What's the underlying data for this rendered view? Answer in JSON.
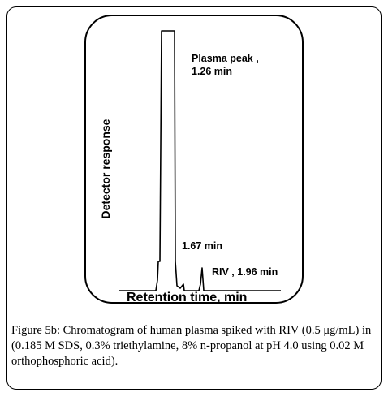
{
  "chart_data": {
    "type": "line",
    "title": "",
    "xlabel": "Retention time, min",
    "ylabel": "Detector response",
    "grid": false,
    "legend": "none",
    "annotations": [
      {
        "id": "plasma",
        "lines": [
          "Plasma peak ,",
          "1.26 min"
        ]
      },
      {
        "id": "p167",
        "lines": [
          "1.67 min"
        ]
      },
      {
        "id": "riv",
        "lines": [
          "RIV , 1.96 min"
        ]
      }
    ],
    "peaks": [
      {
        "label": "Plasma peak",
        "retention_time_min": 1.26
      },
      {
        "label": "unlabeled",
        "retention_time_min": 1.67
      },
      {
        "label": "RIV",
        "retention_time_min": 1.96
      }
    ],
    "color": "#000000"
  },
  "caption": {
    "label": "Figure 5b:",
    "text": " Chromatogram of human plasma spiked with RIV (0.5 μg/mL) in (0.185 M SDS, 0.3% triethylamine, 8% n-propanol at pH 4.0 using 0.02 M orthophosphoric acid)."
  }
}
